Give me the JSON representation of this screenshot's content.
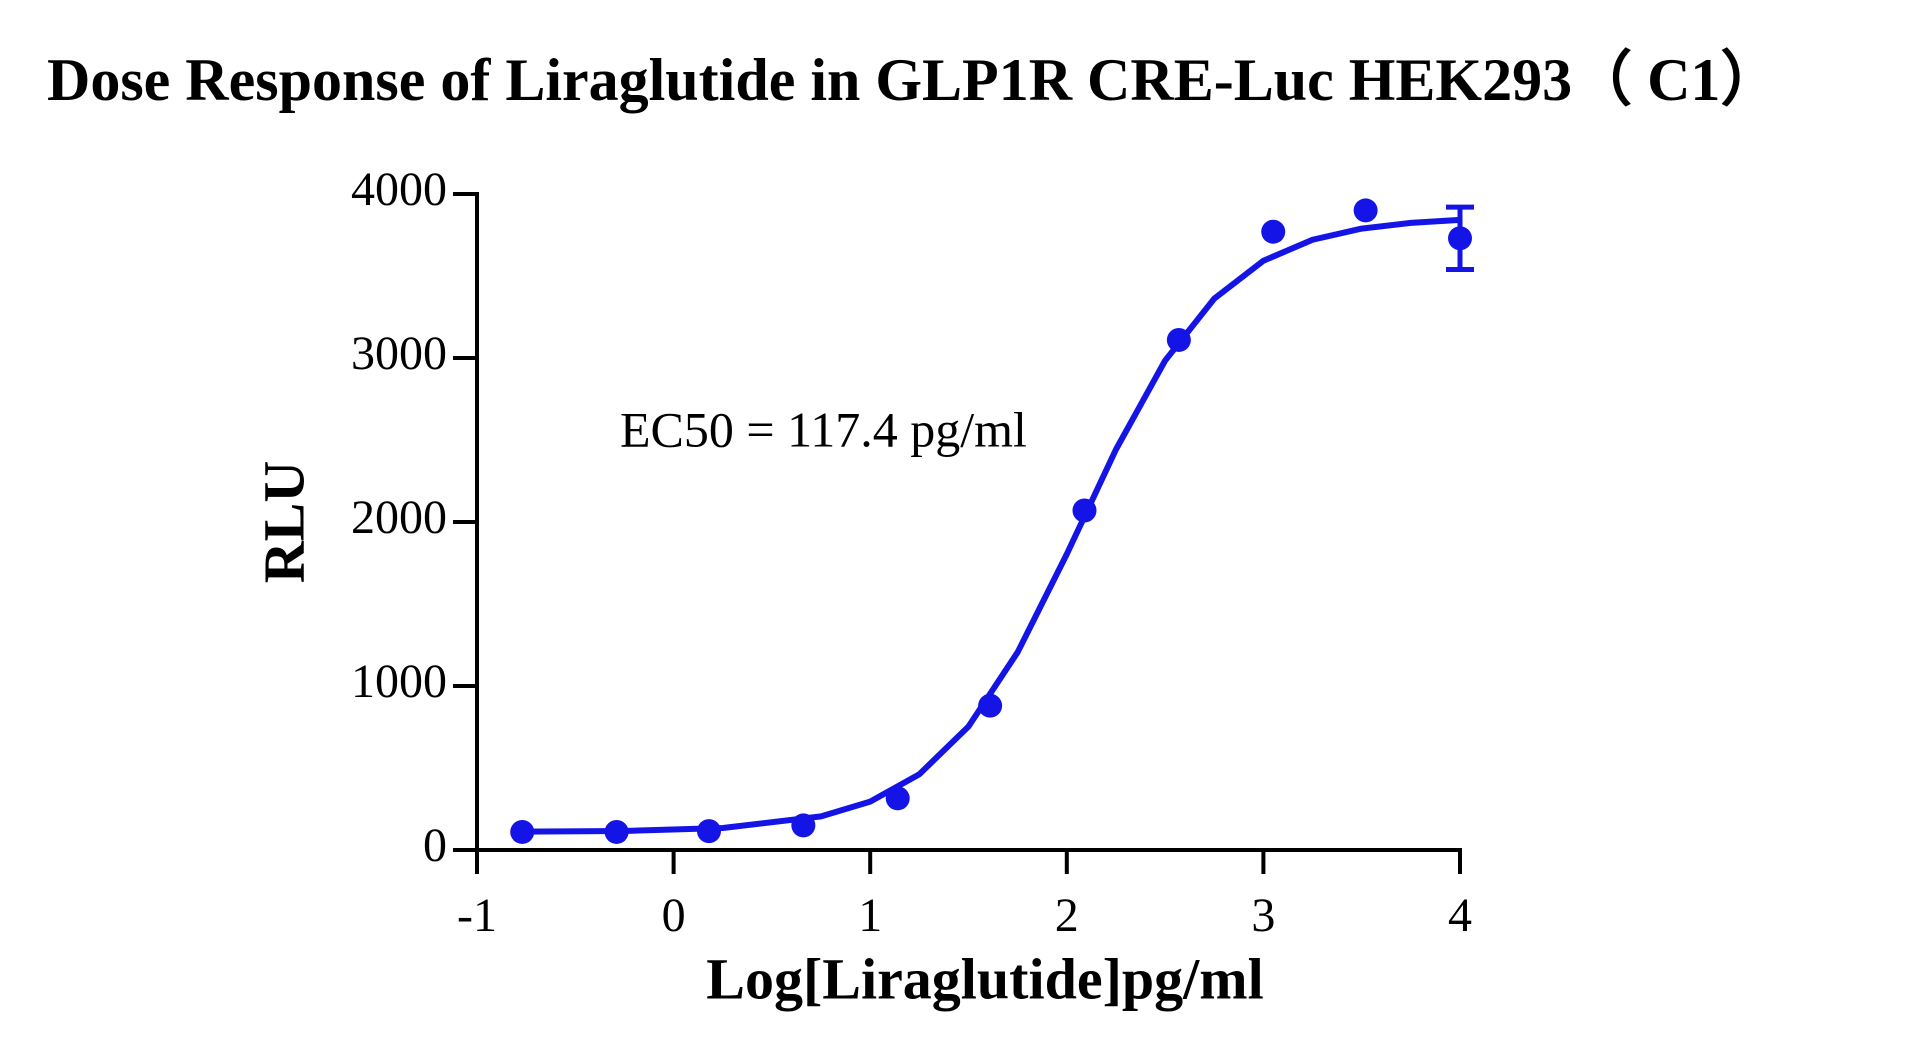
{
  "chart_data": {
    "type": "scatter",
    "title": "Dose Response of Liraglutide in GLP1R CRE-Luc HEK293（ C1）",
    "x_label": "Log[Liraglutide]pg/ml",
    "y_label": "RLU",
    "annotation": "EC50 = 117.4 pg/ml",
    "xlim": [
      -1,
      4
    ],
    "xticks": [
      -1,
      0,
      1,
      2,
      3,
      4
    ],
    "ylim": [
      0,
      4000
    ],
    "yticks": [
      0,
      1000,
      2000,
      3000,
      4000
    ],
    "series": [
      {
        "type": "scatter",
        "color": "#1414e6",
        "x": [
          -0.77,
          -0.29,
          0.18,
          0.66,
          1.14,
          1.61,
          2.09,
          2.57,
          3.05,
          3.52,
          4.0
        ],
        "values": [
          110,
          110,
          115,
          150,
          315,
          880,
          2070,
          3110,
          3770,
          3900,
          3730
        ],
        "errors": [
          null,
          null,
          null,
          null,
          null,
          null,
          null,
          null,
          null,
          null,
          190
        ]
      },
      {
        "type": "line",
        "color": "#1414e6",
        "x": [
          -0.77,
          -0.25,
          0.25,
          0.75,
          1.0,
          1.25,
          1.5,
          1.75,
          2.0,
          2.25,
          2.5,
          2.75,
          3.0,
          3.25,
          3.5,
          3.75,
          4.0
        ],
        "values": [
          112,
          116,
          134,
          205,
          295,
          462,
          753,
          1206,
          1804,
          2442,
          2984,
          3362,
          3593,
          3721,
          3789,
          3824,
          3842
        ]
      }
    ]
  }
}
